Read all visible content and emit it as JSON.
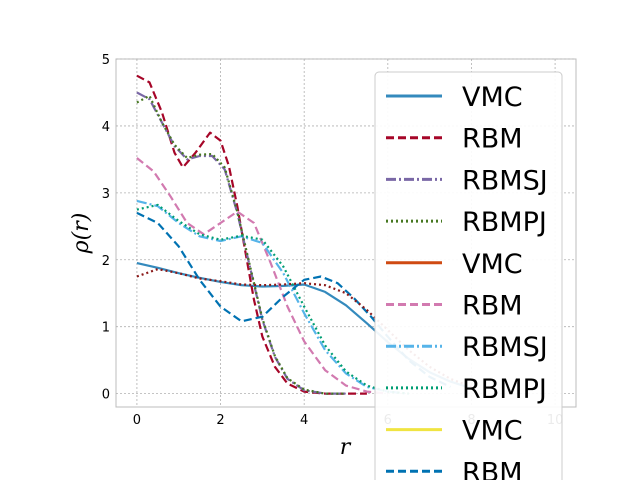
{
  "chart_data": {
    "type": "line",
    "xlabel": "r",
    "ylabel": "ρ(r)",
    "xlim": [
      -0.5,
      10.5
    ],
    "ylim": [
      -0.2,
      5.0
    ],
    "xticks": [
      0,
      2,
      4,
      6,
      8,
      10
    ],
    "yticks": [
      0,
      1,
      2,
      3,
      4,
      5
    ],
    "grid": true,
    "legend_position": "right",
    "series": [
      {
        "name": "VMC",
        "color": "#348abd",
        "dash": "solid",
        "x": [
          0,
          0.5,
          1,
          1.5,
          2,
          2.5,
          3,
          3.5,
          4,
          4.5,
          5,
          5.5,
          6,
          6.5,
          7,
          7.5,
          8
        ],
        "y": [
          1.95,
          1.88,
          1.8,
          1.73,
          1.67,
          1.62,
          1.6,
          1.61,
          1.63,
          1.52,
          1.32,
          1.05,
          0.77,
          0.52,
          0.32,
          0.18,
          0.08
        ]
      },
      {
        "name": "RBM",
        "color": "#a60628",
        "dash": "dashed",
        "x": [
          0,
          0.3,
          0.6,
          0.9,
          1.1,
          1.4,
          1.75,
          2.0,
          2.2,
          2.4,
          2.6,
          2.8,
          3.0,
          3.3,
          3.6,
          4.0,
          4.5,
          5.0,
          5.5
        ],
        "y": [
          4.75,
          4.65,
          4.2,
          3.6,
          3.38,
          3.6,
          3.9,
          3.78,
          3.4,
          2.8,
          2.1,
          1.4,
          0.85,
          0.4,
          0.15,
          0.03,
          0.0,
          0.0,
          0.0
        ]
      },
      {
        "name": "RBMSJ",
        "color": "#7a68a6",
        "dash": "dashdot",
        "x": [
          0,
          0.3,
          0.6,
          0.9,
          1.2,
          1.5,
          1.8,
          2.1,
          2.4,
          2.7,
          3.0,
          3.3,
          3.6,
          4.0,
          4.5,
          5.0
        ],
        "y": [
          4.5,
          4.4,
          4.05,
          3.7,
          3.5,
          3.55,
          3.55,
          3.35,
          2.7,
          1.9,
          1.1,
          0.55,
          0.22,
          0.05,
          0.0,
          0.0
        ]
      },
      {
        "name": "RBMPJ",
        "color": "#467821",
        "dash": "dotted",
        "x": [
          0,
          0.3,
          0.6,
          0.9,
          1.2,
          1.5,
          1.8,
          2.1,
          2.4,
          2.7,
          3.0,
          3.3,
          3.6,
          4.0,
          4.5,
          5.0
        ],
        "y": [
          4.35,
          4.45,
          4.05,
          3.72,
          3.52,
          3.57,
          3.58,
          3.38,
          2.72,
          1.92,
          1.12,
          0.56,
          0.23,
          0.06,
          0.0,
          0.0
        ]
      },
      {
        "name": "VMC",
        "color": "#cf4a12",
        "dash": "solid",
        "x": [],
        "y": []
      },
      {
        "name": "RBM",
        "color": "#d27ab0",
        "dash": "dashed",
        "x": [
          0,
          0.4,
          0.8,
          1.2,
          1.6,
          2.0,
          2.4,
          2.8,
          3.2,
          3.6,
          4.0,
          4.5,
          5.0,
          5.5,
          6.0
        ],
        "y": [
          3.52,
          3.32,
          2.95,
          2.55,
          2.38,
          2.55,
          2.72,
          2.55,
          1.95,
          1.3,
          0.78,
          0.35,
          0.12,
          0.03,
          0.0
        ]
      },
      {
        "name": "RBMSJ",
        "color": "#56b4e9",
        "dash": "dashdot",
        "x": [
          0,
          0.5,
          1.0,
          1.5,
          2.0,
          2.5,
          3.0,
          3.5,
          4.0,
          4.5,
          5.0,
          5.5,
          6.0,
          6.5
        ],
        "y": [
          2.88,
          2.8,
          2.55,
          2.35,
          2.28,
          2.35,
          2.25,
          1.8,
          1.2,
          0.65,
          0.3,
          0.1,
          0.03,
          0.0
        ]
      },
      {
        "name": "RBMPJ",
        "color": "#009e73",
        "dash": "dotted",
        "x": [
          0,
          0.5,
          1.0,
          1.5,
          2.0,
          2.5,
          3.0,
          3.5,
          4.0,
          4.5,
          5.0,
          5.5,
          6.0,
          6.5
        ],
        "y": [
          2.75,
          2.82,
          2.58,
          2.38,
          2.3,
          2.36,
          2.3,
          1.9,
          1.3,
          0.72,
          0.33,
          0.12,
          0.03,
          0.0
        ]
      },
      {
        "name": "VMC",
        "color": "#f0e442",
        "dash": "solid",
        "x": [],
        "y": []
      },
      {
        "name": "RBM",
        "color": "#0072b2",
        "dash": "dashed",
        "x": [
          0,
          0.5,
          1.0,
          1.5,
          2.0,
          2.5,
          3.0,
          3.5,
          4.0,
          4.4,
          4.8,
          5.2,
          5.6,
          6.0,
          6.5,
          7.0,
          7.5
        ],
        "y": [
          2.7,
          2.55,
          2.2,
          1.7,
          1.3,
          1.08,
          1.15,
          1.45,
          1.7,
          1.75,
          1.65,
          1.42,
          1.15,
          0.85,
          0.5,
          0.25,
          0.1
        ]
      },
      {
        "name": "",
        "color": "#8b1a1a",
        "dash": "dotted",
        "x": [
          0,
          0.5,
          1.0,
          1.5,
          2.0,
          2.5,
          3.0,
          3.5,
          4.0,
          4.5,
          5.0,
          5.5,
          6.0,
          6.5,
          7.0,
          7.5,
          8.0
        ],
        "y": [
          1.75,
          1.86,
          1.8,
          1.72,
          1.68,
          1.63,
          1.62,
          1.63,
          1.65,
          1.62,
          1.5,
          1.25,
          0.95,
          0.65,
          0.4,
          0.22,
          0.1
        ]
      }
    ]
  }
}
